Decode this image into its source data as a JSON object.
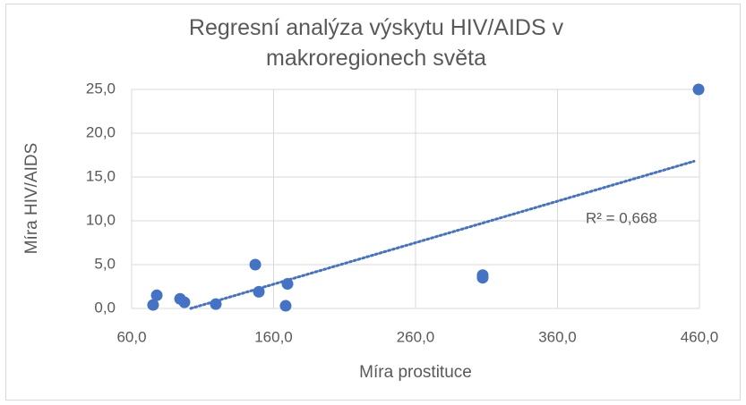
{
  "chart_data": {
    "type": "scatter",
    "title": "Regresní analýza výskytu HIV/AIDS v makroregionech světa",
    "x_label": "Míra prostituce",
    "y_label": "Míra HIV/AIDS",
    "color": "#4472c4",
    "x": [
      75.1,
      77.7,
      94.1,
      97.2,
      119.3,
      147.1,
      149.6,
      169.8,
      168.5,
      307.3,
      307.3,
      459.4
    ],
    "values": [
      0.4,
      1.5,
      1.1,
      0.7,
      0.5,
      5.0,
      1.9,
      2.8,
      0.3,
      3.8,
      3.5,
      25.0
    ],
    "trendline": {
      "x": [
        101.6,
        456.2
      ],
      "values": [
        0,
        16.8
      ],
      "annotation": "R² = 0,668"
    },
    "xlim": [
      60,
      460
    ],
    "xticks": [
      {
        "value": 60,
        "label": "60,0"
      },
      {
        "value": 160,
        "label": "160,0"
      },
      {
        "value": 260,
        "label": "260,0"
      },
      {
        "value": 360,
        "label": "360,0"
      },
      {
        "value": 460,
        "label": "460,0"
      }
    ],
    "ylim": [
      0,
      25
    ],
    "yticks": [
      {
        "value": 0,
        "label": "0,0"
      },
      {
        "value": 5,
        "label": "5,0"
      },
      {
        "value": 10,
        "label": "10,0"
      },
      {
        "value": 15,
        "label": "15,0"
      },
      {
        "value": 20,
        "label": "20,0"
      },
      {
        "value": 25,
        "label": "25,0"
      }
    ],
    "grid": true
  }
}
